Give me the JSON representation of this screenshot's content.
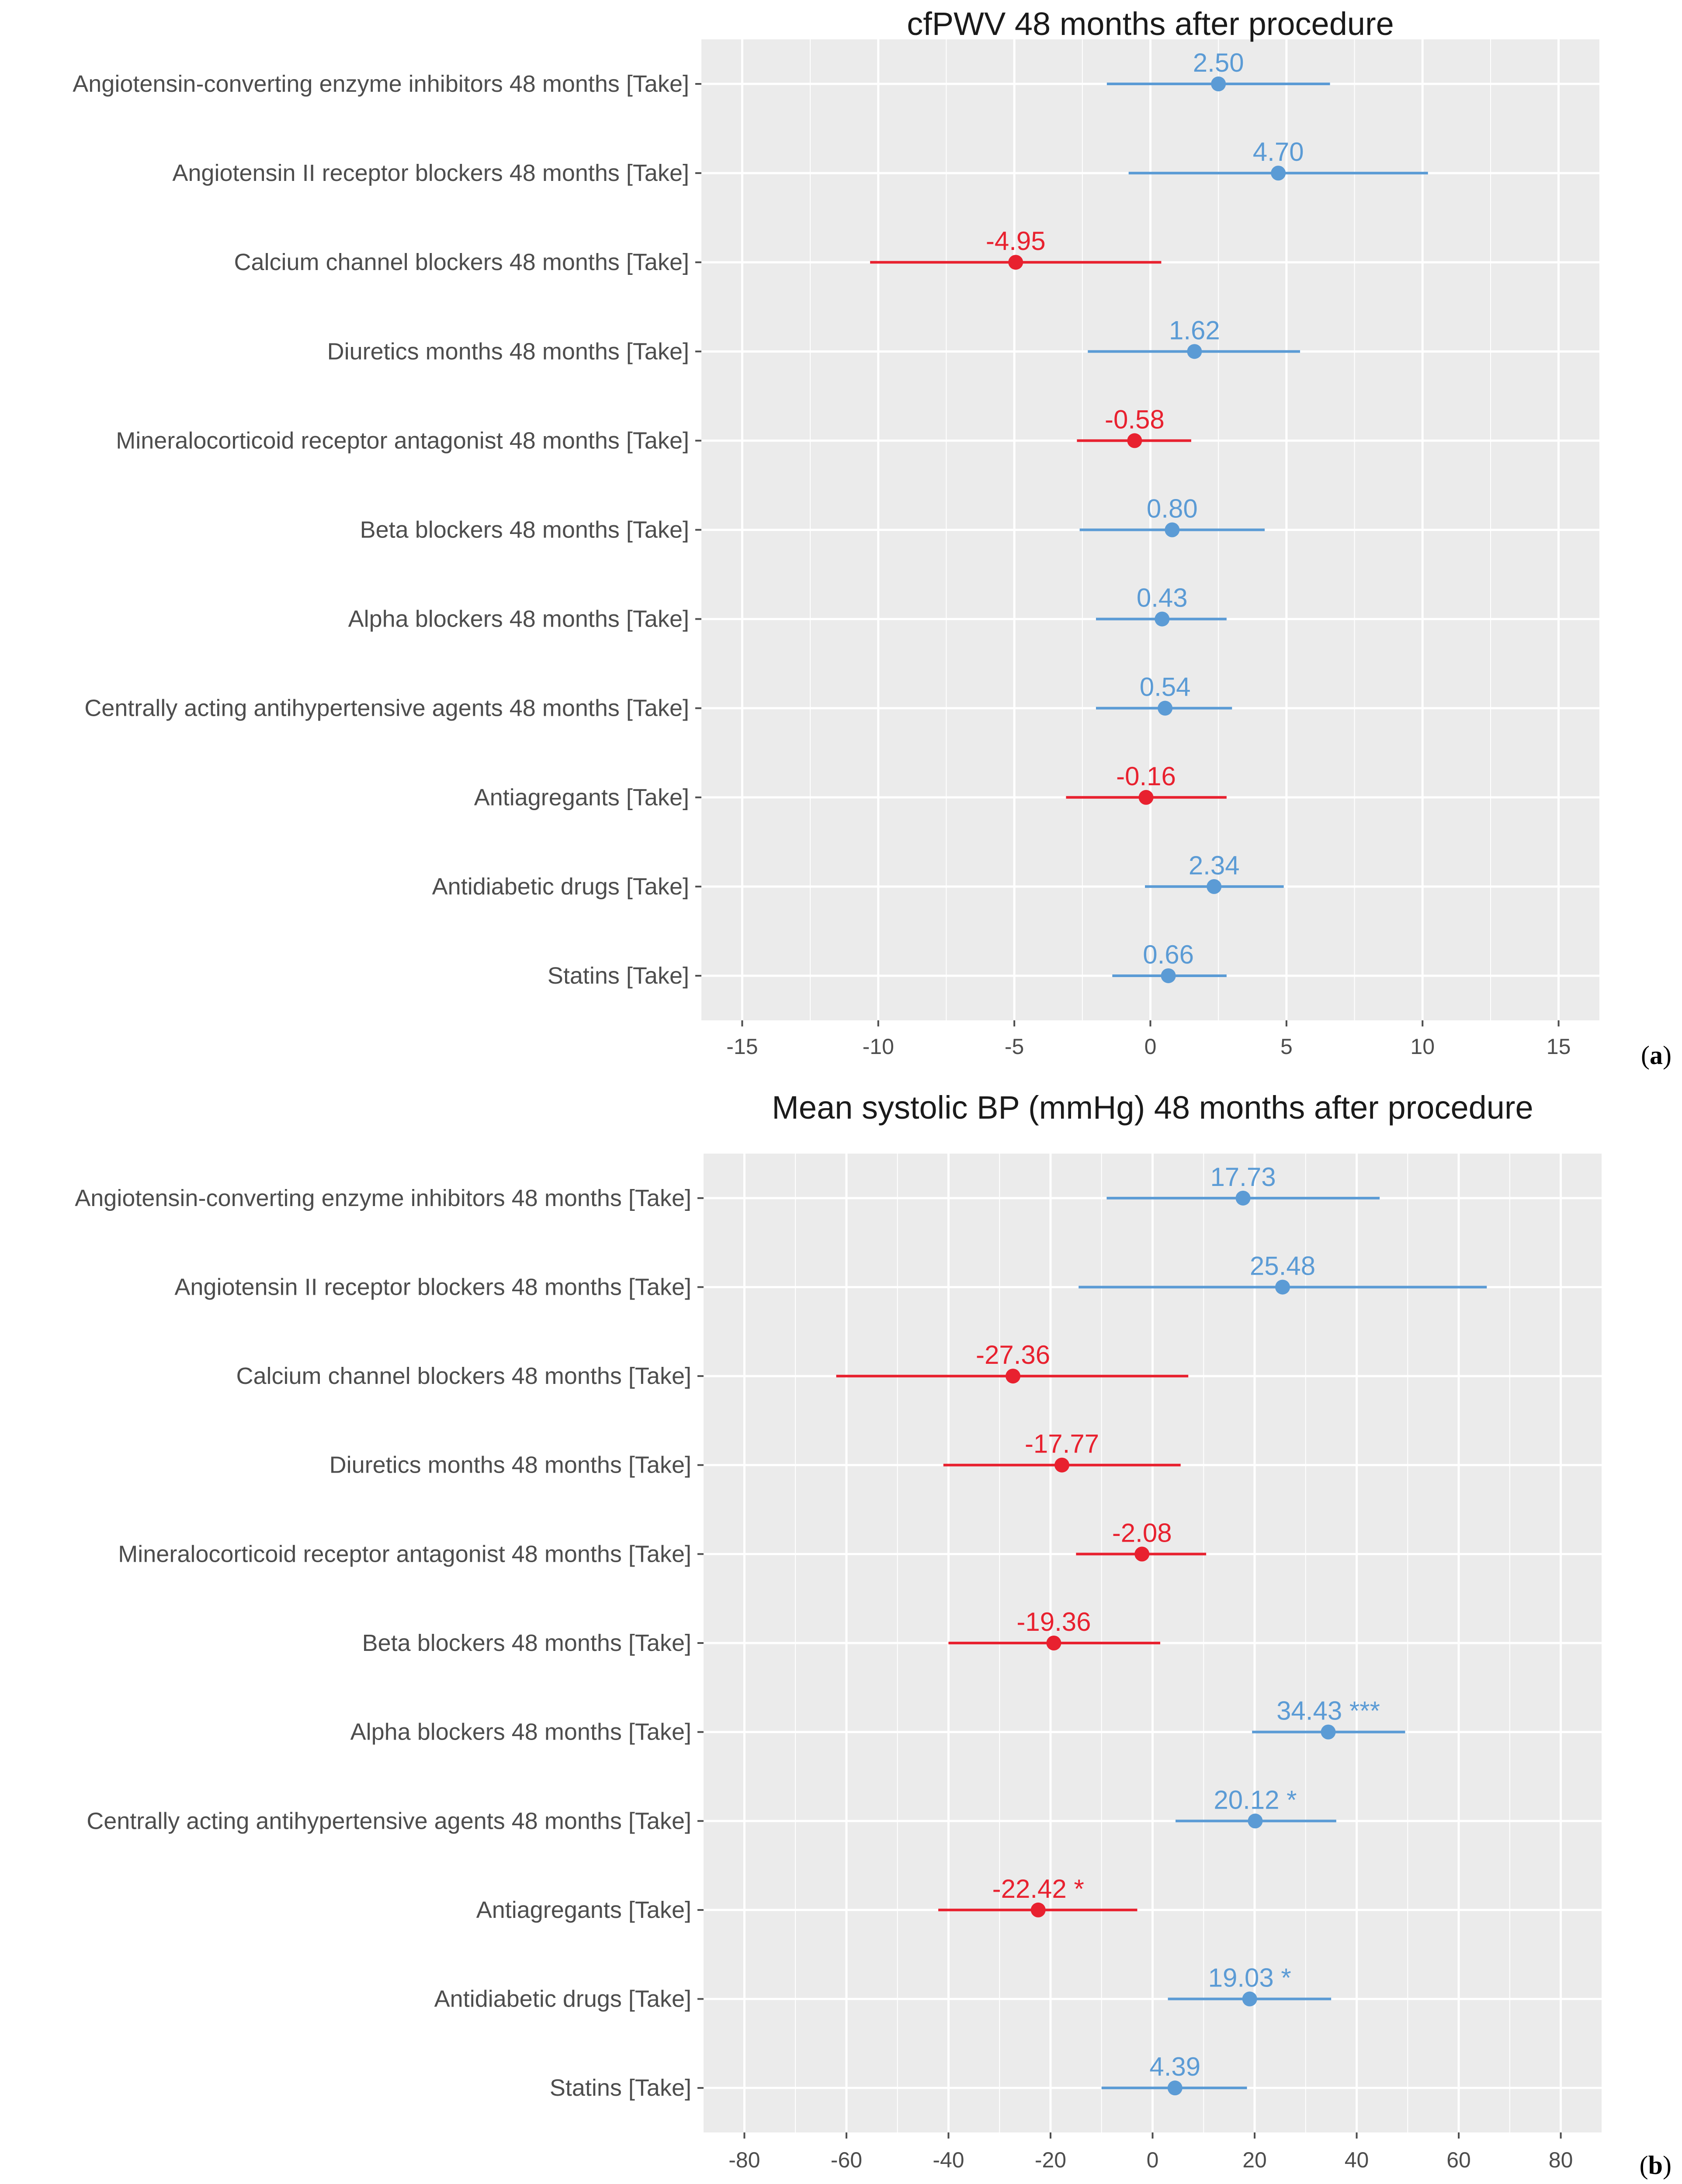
{
  "colors": {
    "positive": "#5b9bd5",
    "negative": "#e8212f",
    "panel_bg": "#ebebeb",
    "grid": "#ffffff"
  },
  "chart_data": [
    {
      "type": "forest",
      "panel_label": "a",
      "title": "cfPWV 48 months after procedure",
      "xlabel": "",
      "ylabel": "",
      "xlim": [
        -16.5,
        16.5
      ],
      "xticks": [
        -15,
        -10,
        -5,
        0,
        5,
        10,
        15
      ],
      "xtick_labels": [
        "-15",
        "-10",
        "-5",
        "0",
        "5",
        "10",
        "15"
      ],
      "grid": true,
      "rows": [
        {
          "label": "Angiotensin-converting enzyme inhibitors 48 months [Take]",
          "estimate": 2.5,
          "lower": -1.6,
          "upper": 6.6,
          "text": "2.50"
        },
        {
          "label": "Angiotensin II receptor blockers 48 months [Take]",
          "estimate": 4.7,
          "lower": -0.8,
          "upper": 10.2,
          "text": "4.70"
        },
        {
          "label": "Calcium channel blockers 48 months [Take]",
          "estimate": -4.95,
          "lower": -10.3,
          "upper": 0.4,
          "text": "-4.95"
        },
        {
          "label": "Diuretics months 48 months [Take]",
          "estimate": 1.62,
          "lower": -2.3,
          "upper": 5.5,
          "text": "1.62"
        },
        {
          "label": "Mineralocorticoid receptor antagonist 48 months [Take]",
          "estimate": -0.58,
          "lower": -2.7,
          "upper": 1.5,
          "text": "-0.58"
        },
        {
          "label": "Beta blockers 48 months [Take]",
          "estimate": 0.8,
          "lower": -2.6,
          "upper": 4.2,
          "text": "0.80"
        },
        {
          "label": "Alpha blockers 48 months [Take]",
          "estimate": 0.43,
          "lower": -2.0,
          "upper": 2.8,
          "text": "0.43"
        },
        {
          "label": "Centrally acting antihypertensive agents 48 months [Take]",
          "estimate": 0.54,
          "lower": -2.0,
          "upper": 3.0,
          "text": "0.54"
        },
        {
          "label": "Antiagregants [Take]",
          "estimate": -0.16,
          "lower": -3.1,
          "upper": 2.8,
          "text": "-0.16"
        },
        {
          "label": "Antidiabetic drugs [Take]",
          "estimate": 2.34,
          "lower": -0.2,
          "upper": 4.9,
          "text": "2.34"
        },
        {
          "label": "Statins [Take]",
          "estimate": 0.66,
          "lower": -1.4,
          "upper": 2.8,
          "text": "0.66"
        }
      ]
    },
    {
      "type": "forest",
      "panel_label": "b",
      "title": "Mean systolic BP (mmHg) 48 months after procedure",
      "xlabel": "",
      "ylabel": "",
      "xlim": [
        -88,
        88
      ],
      "xticks": [
        -80,
        -60,
        -40,
        -20,
        0,
        20,
        40,
        60,
        80
      ],
      "xtick_labels": [
        "-80",
        "-60",
        "-40",
        "-20",
        "0",
        "20",
        "40",
        "60",
        "80"
      ],
      "grid": true,
      "rows": [
        {
          "label": "Angiotensin-converting enzyme inhibitors 48 months [Take]",
          "estimate": 17.73,
          "lower": -9.0,
          "upper": 44.5,
          "text": "17.73"
        },
        {
          "label": "Angiotensin II receptor blockers 48 months [Take]",
          "estimate": 25.48,
          "lower": -14.5,
          "upper": 65.5,
          "text": "25.48"
        },
        {
          "label": "Calcium channel blockers 48 months [Take]",
          "estimate": -27.36,
          "lower": -62.0,
          "upper": 7.0,
          "text": "-27.36"
        },
        {
          "label": "Diuretics months 48 months [Take]",
          "estimate": -17.77,
          "lower": -41.0,
          "upper": 5.5,
          "text": "-17.77"
        },
        {
          "label": "Mineralocorticoid receptor antagonist 48 months [Take]",
          "estimate": -2.08,
          "lower": -15.0,
          "upper": 10.5,
          "text": "-2.08"
        },
        {
          "label": "Beta blockers 48 months [Take]",
          "estimate": -19.36,
          "lower": -40.0,
          "upper": 1.5,
          "text": "-19.36"
        },
        {
          "label": "Alpha blockers 48 months [Take]",
          "estimate": 34.43,
          "lower": 19.5,
          "upper": 49.5,
          "text": "34.43 ***"
        },
        {
          "label": "Centrally acting antihypertensive agents 48 months [Take]",
          "estimate": 20.12,
          "lower": 4.5,
          "upper": 36.0,
          "text": "20.12 *"
        },
        {
          "label": "Antiagregants [Take]",
          "estimate": -22.42,
          "lower": -42.0,
          "upper": -3.0,
          "text": "-22.42 *"
        },
        {
          "label": "Antidiabetic drugs [Take]",
          "estimate": 19.03,
          "lower": 3.0,
          "upper": 35.0,
          "text": "19.03 *"
        },
        {
          "label": "Statins [Take]",
          "estimate": 4.39,
          "lower": -10.0,
          "upper": 18.5,
          "text": "4.39"
        }
      ]
    }
  ]
}
